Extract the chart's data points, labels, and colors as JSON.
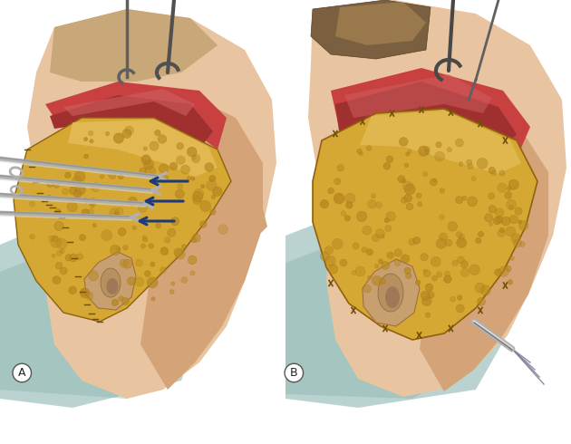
{
  "background_color": "#ffffff",
  "label_A": "A",
  "label_B": "B",
  "label_fontsize": 9,
  "fig_width": 6.3,
  "fig_height": 4.9,
  "dpi": 100,
  "skin_light": "#E8C4A0",
  "skin_mid": "#D4A478",
  "skin_dark": "#C09060",
  "fat_color": "#D4A832",
  "fat_highlight": "#E8C060",
  "fat_shadow": "#B88820",
  "muscle_bright": "#C84040",
  "muscle_mid": "#A03030",
  "muscle_dark": "#802020",
  "neck_teal": "#B0CCC8",
  "neck_teal2": "#90B8B4",
  "ear_base": "#C8A070",
  "scalp_dark": "#8B7050",
  "inst_silver": "#B0B0B0",
  "inst_dark": "#707070",
  "arrow_blue": "#1E3A7A",
  "suture_gray": "#909090",
  "white": "#ffffff"
}
